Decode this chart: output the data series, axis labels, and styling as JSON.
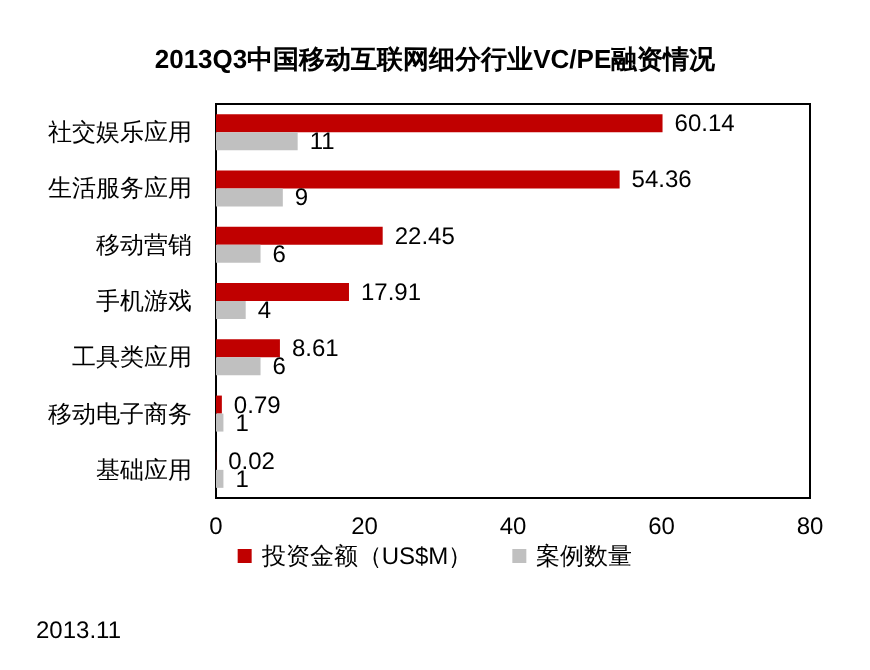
{
  "chart_data": {
    "type": "bar",
    "orientation": "horizontal",
    "title": "2013Q3中国移动互联网细分行业VC/PE融资情况",
    "categories": [
      "社交娱乐应用",
      "生活服务应用",
      "移动营销",
      "手机游戏",
      "工具类应用",
      "移动电子商务",
      "基础应用"
    ],
    "series": [
      {
        "name": "投资金额（US$M）",
        "color": "#c00000",
        "values": [
          60.14,
          54.36,
          22.45,
          17.91,
          8.61,
          0.79,
          0.02
        ]
      },
      {
        "name": "案例数量",
        "color": "#c0c0c0",
        "values": [
          11,
          9,
          6,
          4,
          6,
          1,
          1
        ]
      }
    ],
    "xlim": [
      0,
      80
    ],
    "xticks": [
      0,
      20,
      40,
      60,
      80
    ],
    "grid": false,
    "legend": "bottom",
    "data_labels": true,
    "annotations": [
      "2013.11"
    ]
  }
}
